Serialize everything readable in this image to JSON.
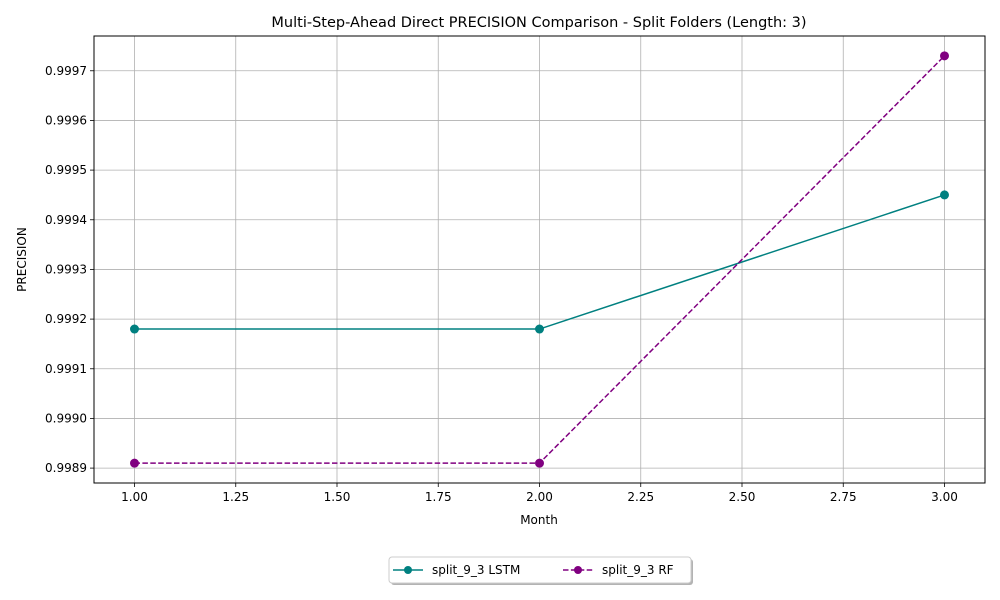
{
  "chart_data": {
    "type": "line",
    "title": "Multi-Step-Ahead Direct PRECISION Comparison - Split Folders (Length: 3)",
    "xlabel": "Month",
    "ylabel": "PRECISION",
    "x": [
      1,
      2,
      3
    ],
    "xlim": [
      0.9,
      3.1
    ],
    "ylim": [
      0.99887,
      0.99977
    ],
    "xticks": [
      1.0,
      1.25,
      1.5,
      1.75,
      2.0,
      2.25,
      2.5,
      2.75,
      3.0
    ],
    "xtick_labels": [
      "1.00",
      "1.25",
      "1.50",
      "1.75",
      "2.00",
      "2.25",
      "2.50",
      "2.75",
      "3.00"
    ],
    "yticks": [
      0.9989,
      0.999,
      0.9991,
      0.9992,
      0.9993,
      0.9994,
      0.9995,
      0.9996,
      0.9997
    ],
    "ytick_labels": [
      "0.9989",
      "0.9990",
      "0.9991",
      "0.9992",
      "0.9993",
      "0.9994",
      "0.9995",
      "0.9996",
      "0.9997"
    ],
    "grid": true,
    "legend_position": "bottom-center",
    "series": [
      {
        "name": "split_9_3 LSTM",
        "values": [
          0.99918,
          0.99918,
          0.99945
        ],
        "color": "#008080",
        "line_style": "solid",
        "marker": "circle"
      },
      {
        "name": "split_9_3 RF",
        "values": [
          0.99891,
          0.99891,
          0.99973
        ],
        "color": "#800080",
        "line_style": "dashed",
        "marker": "circle"
      }
    ]
  }
}
